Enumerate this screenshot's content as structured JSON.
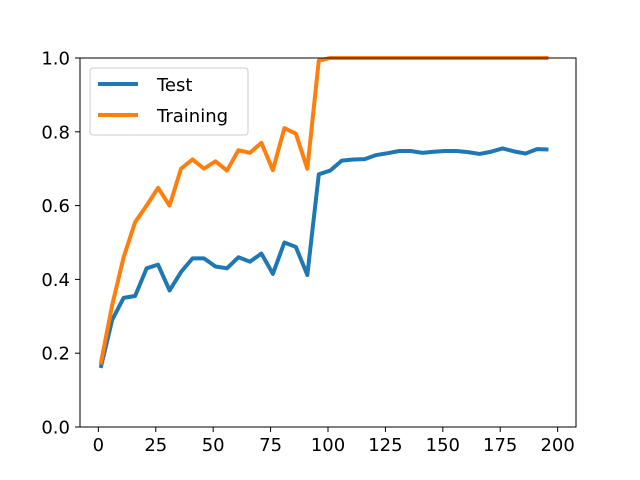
{
  "chart_data": {
    "type": "line",
    "title": "",
    "xlabel": "",
    "ylabel": "",
    "xlim": [
      -8,
      208
    ],
    "ylim": [
      0.0,
      1.0
    ],
    "xticks": [
      0,
      25,
      50,
      75,
      100,
      125,
      150,
      175,
      200
    ],
    "yticks": [
      0.0,
      0.2,
      0.4,
      0.6,
      0.8,
      1.0
    ],
    "xtick_labels": [
      "0",
      "25",
      "50",
      "75",
      "100",
      "125",
      "150",
      "175",
      "200"
    ],
    "ytick_labels": [
      "0.0",
      "0.2",
      "0.4",
      "0.6",
      "0.8",
      "1.0"
    ],
    "grid": false,
    "legend": "upper-left",
    "x": [
      1,
      6,
      11,
      16,
      21,
      26,
      31,
      36,
      41,
      46,
      51,
      56,
      61,
      66,
      71,
      76,
      81,
      86,
      91,
      96,
      101,
      106,
      111,
      116,
      121,
      126,
      131,
      136,
      141,
      146,
      151,
      156,
      161,
      166,
      171,
      176,
      181,
      186,
      191,
      196
    ],
    "series": [
      {
        "name": "Test",
        "color": "#1f77b4",
        "values": [
          0.16,
          0.29,
          0.35,
          0.355,
          0.43,
          0.44,
          0.37,
          0.42,
          0.457,
          0.457,
          0.435,
          0.43,
          0.46,
          0.448,
          0.47,
          0.415,
          0.5,
          0.488,
          0.412,
          0.685,
          0.695,
          0.722,
          0.725,
          0.726,
          0.737,
          0.742,
          0.748,
          0.748,
          0.743,
          0.746,
          0.748,
          0.748,
          0.745,
          0.74,
          0.746,
          0.755,
          0.747,
          0.741,
          0.753,
          0.752
        ]
      },
      {
        "name": "Training",
        "color": "#ff7f0e",
        "values": [
          0.17,
          0.33,
          0.46,
          0.555,
          0.6,
          0.648,
          0.6,
          0.7,
          0.725,
          0.7,
          0.72,
          0.695,
          0.75,
          0.743,
          0.77,
          0.696,
          0.81,
          0.795,
          0.7,
          0.993,
          1.0,
          1.0,
          1.0,
          1.0,
          1.0,
          1.0,
          1.0,
          1.0,
          1.0,
          1.0,
          1.0,
          1.0,
          1.0,
          1.0,
          1.0,
          1.0,
          1.0,
          1.0,
          1.0,
          1.0
        ]
      }
    ]
  }
}
